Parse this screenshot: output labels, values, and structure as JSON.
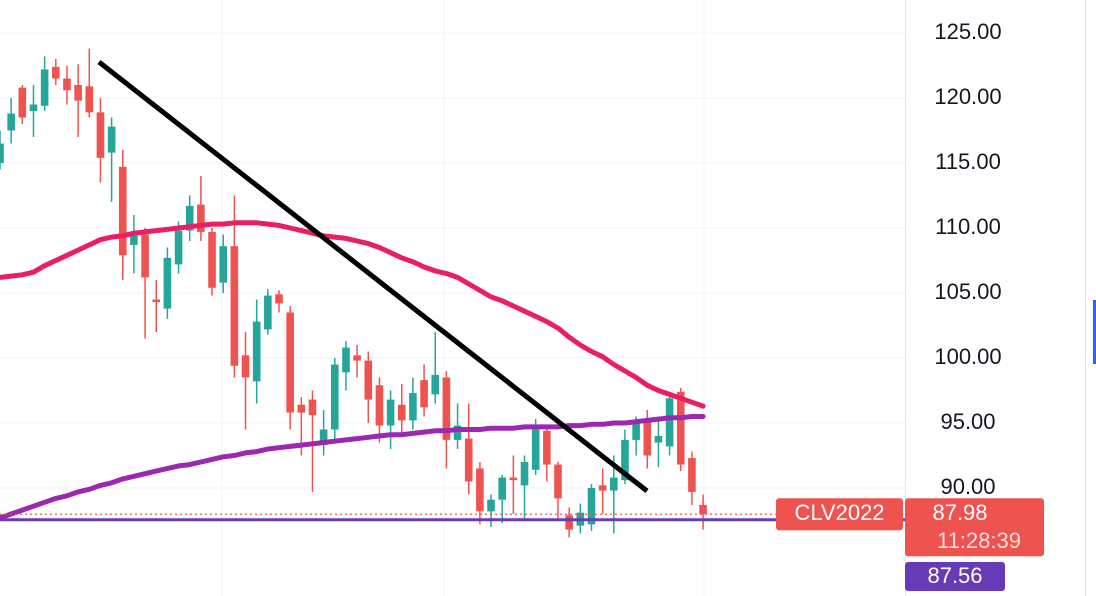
{
  "chart_data": {
    "type": "candlestick",
    "ylim": [
      81.69,
      127.54
    ],
    "yticks": [
      {
        "value": 90,
        "label": "90.00"
      },
      {
        "value": 95,
        "label": "95.00"
      },
      {
        "value": 100,
        "label": "100.00"
      },
      {
        "value": 105,
        "label": "105.00"
      },
      {
        "value": 110,
        "label": "110.00"
      },
      {
        "value": 115,
        "label": "115.00"
      },
      {
        "value": 120,
        "label": "120.00"
      },
      {
        "value": 125,
        "label": "125.00"
      }
    ],
    "grid": true,
    "up_color": "#26a69a",
    "down_color": "#ef5350",
    "open": [
      115,
      117.5,
      120.8,
      119,
      119.4,
      122.4,
      121.5,
      121,
      120.9,
      118.9,
      115.8,
      114.7,
      108.7,
      109.5,
      104.5,
      103.8,
      107.2,
      109.8,
      111.8,
      109.7,
      105.8,
      108.6,
      100.2,
      98.2,
      102.2,
      104.9,
      103.5,
      96.4,
      96.8,
      93.3,
      94.5,
      98.9,
      100.2,
      99.8,
      97.9,
      94.8,
      96.4,
      95.2,
      98.3,
      97.2,
      98.5,
      93.7,
      93.8,
      91.5,
      88.2,
      89.1,
      90.8,
      90.2,
      91.4,
      94.4,
      91.8,
      87.9,
      87.1,
      87.2,
      90.2,
      89.8,
      90.6,
      93.7,
      95.2,
      93.5,
      93.2,
      97.4,
      92.3,
      88.7
    ],
    "high": [
      117.5,
      120,
      121,
      121,
      123.2,
      123,
      122.5,
      122.6,
      123.8,
      120,
      118.5,
      116,
      111,
      110,
      106,
      108.5,
      110.5,
      112.5,
      114,
      110,
      109.5,
      112.5,
      102,
      104.5,
      105.3,
      105.2,
      104,
      97,
      97.5,
      96,
      100,
      101.3,
      101,
      100.5,
      98.5,
      97.5,
      98,
      98.5,
      99.5,
      102,
      99,
      96.5,
      96.5,
      92,
      89.5,
      91,
      92.5,
      92.5,
      95.3,
      94.8,
      92,
      88.5,
      88.8,
      90.3,
      91.5,
      92.5,
      94.5,
      95.5,
      96,
      95.5,
      97.3,
      97.7,
      92.8,
      89.5
    ],
    "low": [
      114.5,
      116.5,
      118,
      117,
      119,
      121,
      119.5,
      117,
      118.5,
      113.5,
      112,
      106,
      106.5,
      101.5,
      102,
      103,
      106.5,
      109,
      109,
      104.8,
      105,
      98.5,
      94.5,
      96.5,
      101.8,
      103.5,
      94.5,
      92.5,
      89.7,
      92.5,
      93.5,
      97.5,
      98.5,
      95,
      93.5,
      93,
      94,
      94.5,
      95.5,
      96.5,
      91.5,
      93,
      89.5,
      87.2,
      87,
      87.3,
      88,
      87.5,
      91,
      90.5,
      87.5,
      86.2,
      86.5,
      86.7,
      88,
      86.5,
      90.3,
      92.5,
      91.5,
      91.6,
      92.5,
      91.3,
      88.7,
      86.8
    ],
    "close": [
      116.5,
      118.8,
      118.5,
      119.5,
      122.2,
      121.5,
      120.6,
      119.8,
      118.9,
      115.4,
      117.8,
      107.9,
      109.5,
      106.2,
      104.3,
      107.7,
      109.8,
      111.7,
      109.7,
      105.4,
      108.6,
      99.4,
      98.5,
      102.8,
      104.8,
      104.2,
      95.8,
      95.8,
      95.6,
      94.5,
      99.5,
      100.8,
      99.8,
      96.8,
      94.8,
      96.8,
      95.2,
      97.3,
      96.2,
      98.7,
      93.7,
      94.8,
      90.5,
      88.2,
      89.1,
      90.8,
      90.6,
      92,
      94.5,
      91.8,
      89.2,
      86.8,
      88.1,
      90,
      89.8,
      90.8,
      93.7,
      95,
      92.5,
      94,
      96.9,
      91.8,
      89.7,
      87.98
    ],
    "series": [
      {
        "color": "#e91e63",
        "values": [
          106.2,
          106.3,
          106.4,
          106.6,
          107.1,
          107.5,
          107.9,
          108.3,
          108.7,
          109.1,
          109.3,
          109.4,
          109.6,
          109.7,
          109.8,
          109.9,
          110.0,
          110.1,
          110.2,
          110.3,
          110.3,
          110.4,
          110.4,
          110.4,
          110.3,
          110.2,
          110.0,
          109.8,
          109.6,
          109.4,
          109.3,
          109.2,
          109.0,
          108.8,
          108.5,
          108.1,
          107.7,
          107.4,
          107.0,
          106.7,
          106.5,
          106.2,
          105.7,
          105.2,
          104.7,
          104.4,
          104.0,
          103.6,
          103.2,
          102.8,
          102.3,
          101.6,
          101.0,
          100.5,
          100.1,
          99.5,
          99.0,
          98.5,
          97.9,
          97.5,
          97.2,
          96.9,
          96.6,
          96.3
        ]
      },
      {
        "color": "#9c27b0",
        "values": [
          87.7,
          88.0,
          88.3,
          88.6,
          88.9,
          89.2,
          89.4,
          89.7,
          89.9,
          90.2,
          90.4,
          90.7,
          90.9,
          91.1,
          91.3,
          91.5,
          91.7,
          91.8,
          92.0,
          92.2,
          92.4,
          92.5,
          92.7,
          92.8,
          93.0,
          93.1,
          93.2,
          93.3,
          93.4,
          93.5,
          93.6,
          93.7,
          93.8,
          93.9,
          94.0,
          94.1,
          94.1,
          94.2,
          94.3,
          94.4,
          94.4,
          94.5,
          94.5,
          94.5,
          94.6,
          94.6,
          94.6,
          94.7,
          94.7,
          94.7,
          94.7,
          94.8,
          94.8,
          94.9,
          94.9,
          95.0,
          95.0,
          95.1,
          95.2,
          95.3,
          95.4,
          95.4,
          95.5,
          95.5
        ]
      }
    ],
    "last_price": {
      "symbol": "CLV2022",
      "value": 87.98,
      "countdown": "11:28:39",
      "color": "#ef5350"
    },
    "price_line": {
      "value": 87.56,
      "color": "#673ab7"
    }
  }
}
